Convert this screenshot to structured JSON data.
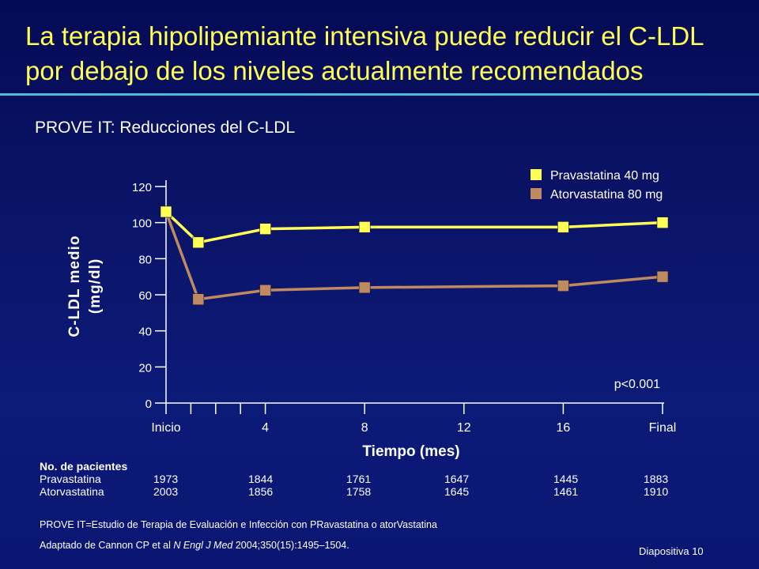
{
  "slide": {
    "title_line1": "La terapia hipolipemiante intensiva puede reducir el C-LDL",
    "title_line2": "por debajo de los niveles actualmente recomendados",
    "subtitle": "PROVE IT: Reducciones del C-LDL",
    "slide_number": "Diapositiva 10",
    "colors": {
      "title": "#ffff55",
      "rule": "#4bbcd6",
      "background": "#0a1366"
    }
  },
  "chart_data": {
    "type": "line",
    "xlabel": "Tiempo (mes)",
    "ylabel_line1": "C-LDL medio",
    "ylabel_line2": "(mg/dl)",
    "ylim": [
      0,
      120
    ],
    "yticks": [
      0,
      20,
      40,
      60,
      80,
      100,
      120
    ],
    "xticks": [
      {
        "x": 0,
        "label": "Inicio"
      },
      {
        "x": 4,
        "label": "4"
      },
      {
        "x": 8,
        "label": "8"
      },
      {
        "x": 12,
        "label": "12"
      },
      {
        "x": 16,
        "label": "16"
      },
      {
        "x": 20,
        "label": "Final"
      }
    ],
    "minor_xticks": [
      1,
      2,
      3
    ],
    "x": [
      0,
      1.3,
      4,
      8,
      16,
      20
    ],
    "series": [
      {
        "name": "Pravastatina 40 mg",
        "color": "#ffff55",
        "values": [
          106,
          89,
          96.5,
          97.5,
          97.5,
          100
        ]
      },
      {
        "name": "Atorvastatina 80 mg",
        "color": "#c08a60",
        "values": [
          106,
          57.5,
          62.5,
          64,
          65,
          70
        ]
      }
    ],
    "annotation": "p<0.001",
    "legend_position": "top-right"
  },
  "patients": {
    "header": "No. de pacientes",
    "rows": [
      {
        "label": "Pravastatina",
        "values": [
          "1973",
          "1844",
          "1761",
          "1647",
          "1445",
          "1883"
        ]
      },
      {
        "label": "Atorvastatina",
        "values": [
          "2003",
          "1856",
          "1758",
          "1645",
          "1461",
          "1910"
        ]
      }
    ]
  },
  "footnotes": {
    "abbrev": "PROVE IT=Estudio de Terapia de Evaluación e Infección con PRavastatina o atorVastatina",
    "source_pre": "Adaptado de Cannon CP et al ",
    "source_journal": "N Engl J Med",
    "source_post": " 2004;350(15):1495–1504."
  }
}
